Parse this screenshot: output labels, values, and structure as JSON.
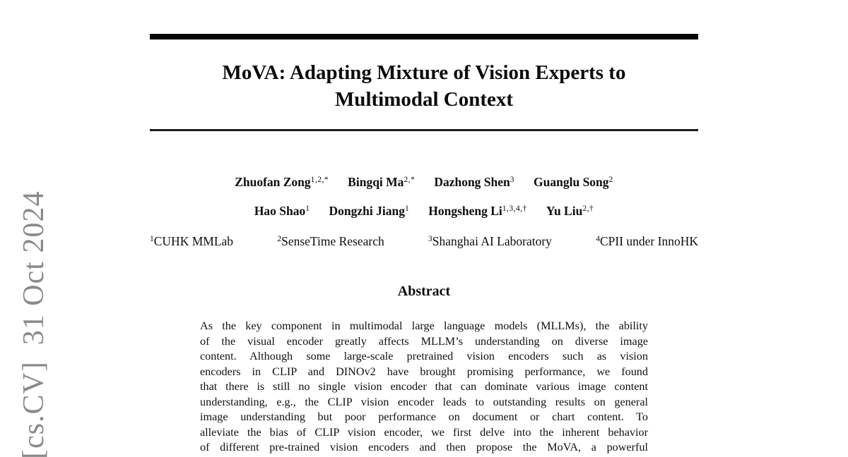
{
  "stamp": {
    "text": "[cs.CV]  31 Oct 2024",
    "color": "#8a8a8a"
  },
  "title": "MoVA: Adapting Mixture of Vision Experts to Multimodal Context",
  "authors": {
    "rows": [
      {
        "items": [
          {
            "name": "Zhuofan Zong",
            "sup": "1,2,*"
          },
          {
            "name": "Bingqi Ma",
            "sup": "2,*"
          },
          {
            "name": "Dazhong Shen",
            "sup": "3"
          },
          {
            "name": "Guanglu Song",
            "sup": "2"
          }
        ]
      },
      {
        "items": [
          {
            "name": "Hao Shao",
            "sup": "1"
          },
          {
            "name": "Dongzhi Jiang",
            "sup": "1"
          },
          {
            "name": "Hongsheng Li",
            "sup": "1,3,4,†"
          },
          {
            "name": "Yu Liu",
            "sup": "2,†"
          }
        ]
      }
    ]
  },
  "affiliations": [
    {
      "sup": "1",
      "label": "CUHK MMLab"
    },
    {
      "sup": "2",
      "label": "SenseTime Research"
    },
    {
      "sup": "3",
      "label": "Shanghai AI Laboratory"
    },
    {
      "sup": "4",
      "label": "CPII under InnoHK"
    }
  ],
  "abstract": {
    "heading": "Abstract",
    "lines": [
      "As the key component in multimodal large language models (MLLMs), the ability",
      "of the visual encoder greatly affects MLLM’s understanding on diverse image",
      "content. Although some large-scale pretrained vision encoders such as vision",
      "encoders in CLIP and DINOv2 have brought promising performance, we found",
      "that there is still no single vision encoder that can dominate various image content",
      "understanding, e.g., the CLIP vision encoder leads to outstanding results on general",
      "image understanding but poor performance on document or chart content. To",
      "alleviate the bias of CLIP vision encoder, we first delve into the inherent behavior",
      "of different pre-trained vision encoders and then propose the MoVA, a powerful"
    ]
  },
  "colors": {
    "background": "#ffffff",
    "text": "#0e0e0e",
    "stamp_gray": "#8a8a8a"
  }
}
